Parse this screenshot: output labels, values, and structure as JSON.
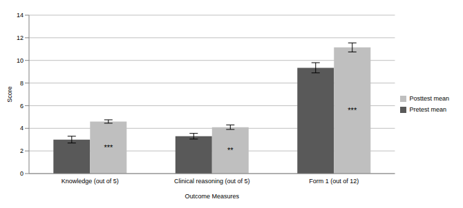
{
  "chart_data": {
    "type": "bar",
    "x_label": "Outcome Measures",
    "y_label": "Score",
    "categories": [
      "Knowledge (out of 5)",
      "Clinical reasoning (out of 5)",
      "Form 1 (out of 12)"
    ],
    "series": [
      {
        "name": "Pretest mean",
        "color": "#595959",
        "values": [
          3.0,
          3.3,
          9.35
        ],
        "errors": [
          0.3,
          0.25,
          0.45
        ]
      },
      {
        "name": "Posttest mean",
        "color": "#bfbfbf",
        "values": [
          4.6,
          4.1,
          11.15
        ],
        "errors": [
          0.15,
          0.2,
          0.4
        ],
        "annotations": [
          "***",
          "**",
          "***"
        ]
      }
    ],
    "ylim": [
      0,
      14
    ],
    "yticks": [
      0,
      2,
      4,
      6,
      8,
      10,
      12,
      14
    ],
    "grid": true,
    "legend": "right"
  }
}
